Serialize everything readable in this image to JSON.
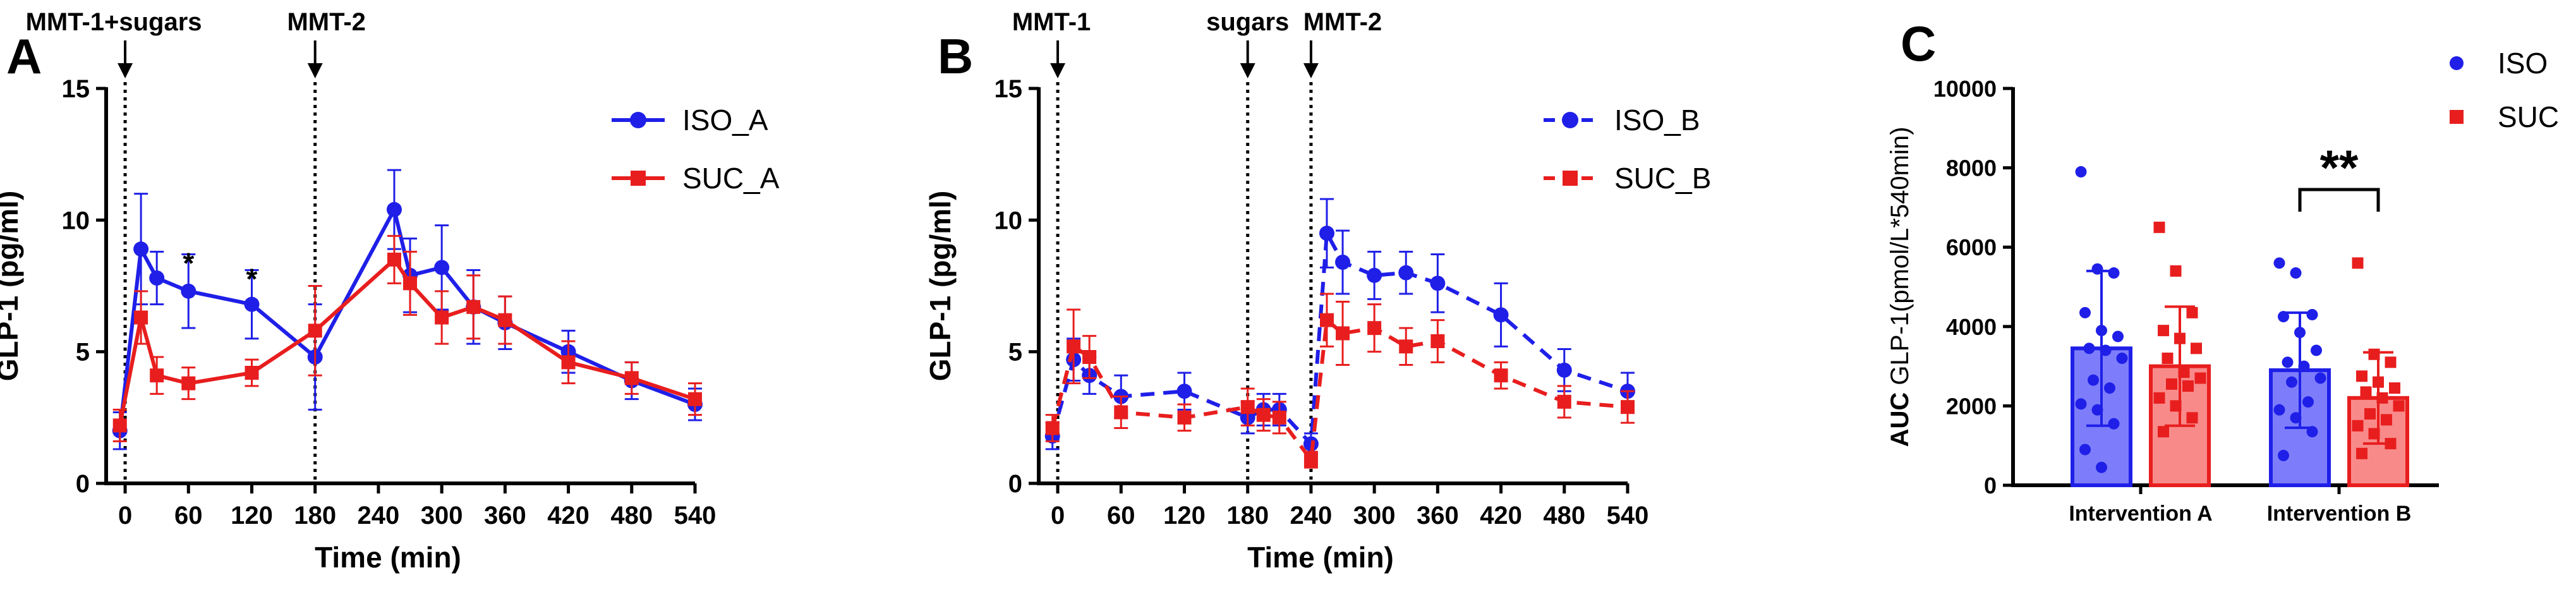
{
  "chart_data": [
    {
      "panel_label": "A",
      "type": "line",
      "xlabel": "Time (min)",
      "ylabel": "GLP-1 (pg/ml)",
      "xlim": [
        -18,
        540
      ],
      "ylim": [
        0,
        15
      ],
      "xticks": [
        0,
        60,
        120,
        180,
        240,
        300,
        360,
        420,
        480,
        540
      ],
      "yticks": [
        0,
        5,
        10,
        15
      ],
      "legend_position": "top-right",
      "event_markers": [
        {
          "x": 0,
          "label": "MMT-1+sugars"
        },
        {
          "x": 180,
          "label": "MMT-2"
        }
      ],
      "series": [
        {
          "name": "ISO_A",
          "color": "#1f1fe8",
          "marker": "circle",
          "line": "solid",
          "x": [
            -5,
            15,
            30,
            60,
            120,
            180,
            255,
            270,
            300,
            330,
            360,
            420,
            480,
            540
          ],
          "values": [
            2.0,
            8.9,
            7.8,
            7.3,
            6.8,
            4.8,
            10.4,
            7.9,
            8.2,
            6.7,
            6.1,
            5.0,
            3.9,
            3.0
          ],
          "errors": [
            0.7,
            2.1,
            1.0,
            1.4,
            1.3,
            2.0,
            1.5,
            1.4,
            1.6,
            1.4,
            1.0,
            0.8,
            0.7,
            0.6
          ]
        },
        {
          "name": "SUC_A",
          "color": "#e81e1e",
          "marker": "square",
          "line": "solid",
          "x": [
            -5,
            15,
            30,
            60,
            120,
            180,
            255,
            270,
            300,
            330,
            360,
            420,
            480,
            540
          ],
          "values": [
            2.2,
            6.3,
            4.1,
            3.8,
            4.2,
            5.8,
            8.5,
            7.6,
            6.3,
            6.7,
            6.2,
            4.6,
            4.0,
            3.2
          ],
          "errors": [
            0.6,
            1.0,
            0.7,
            0.6,
            0.5,
            1.7,
            0.9,
            1.2,
            1.0,
            1.2,
            0.9,
            0.8,
            0.6,
            0.6
          ]
        }
      ],
      "annotations": [
        {
          "x": 60,
          "y": 8.7,
          "text": "*"
        },
        {
          "x": 120,
          "y": 8.1,
          "text": "*"
        }
      ]
    },
    {
      "panel_label": "B",
      "type": "line",
      "xlabel": "Time (min)",
      "ylabel": "GLP-1 (pg/ml)",
      "xlim": [
        -18,
        540
      ],
      "ylim": [
        0,
        15
      ],
      "xticks": [
        0,
        60,
        120,
        180,
        240,
        300,
        360,
        420,
        480,
        540
      ],
      "yticks": [
        0,
        5,
        10,
        15
      ],
      "legend_position": "top-right",
      "event_markers": [
        {
          "x": 0,
          "label": "MMT-1"
        },
        {
          "x": 180,
          "label": "sugars"
        },
        {
          "x": 240,
          "label": "MMT-2"
        }
      ],
      "series": [
        {
          "name": "ISO_B",
          "color": "#1f1fe8",
          "marker": "circle",
          "line": "dashed",
          "x": [
            -5,
            15,
            30,
            60,
            120,
            180,
            195,
            210,
            240,
            255,
            270,
            300,
            330,
            360,
            420,
            480,
            540
          ],
          "values": [
            1.8,
            4.7,
            4.1,
            3.3,
            3.5,
            2.5,
            2.8,
            2.8,
            1.5,
            9.5,
            8.4,
            7.9,
            8.0,
            7.6,
            6.4,
            4.3,
            3.5
          ],
          "errors": [
            0.5,
            0.8,
            0.7,
            0.8,
            0.7,
            0.6,
            0.6,
            0.6,
            0.4,
            1.3,
            1.2,
            0.9,
            0.8,
            1.1,
            1.2,
            0.8,
            0.7
          ]
        },
        {
          "name": "SUC_B",
          "color": "#e81e1e",
          "marker": "square",
          "line": "dashed",
          "x": [
            -5,
            15,
            30,
            60,
            120,
            180,
            195,
            210,
            240,
            255,
            270,
            300,
            330,
            360,
            420,
            480,
            540
          ],
          "values": [
            2.1,
            5.2,
            4.8,
            2.7,
            2.5,
            2.9,
            2.6,
            2.5,
            0.9,
            6.2,
            5.7,
            5.9,
            5.2,
            5.4,
            4.1,
            3.1,
            2.9
          ],
          "errors": [
            0.5,
            1.4,
            0.8,
            0.6,
            0.5,
            0.7,
            0.6,
            0.6,
            0.3,
            1.0,
            1.2,
            0.9,
            0.7,
            0.8,
            0.5,
            0.6,
            0.6
          ]
        }
      ]
    },
    {
      "panel_label": "C",
      "type": "bar",
      "ylabel_bold": "AUC",
      "ylabel_rest": " GLP-1(pmol/L*540min)",
      "ylim": [
        0,
        10000
      ],
      "yticks": [
        0,
        2000,
        4000,
        6000,
        8000,
        10000
      ],
      "categories": [
        "Intervention A",
        "Intervention B"
      ],
      "legend_position": "top-right",
      "series": [
        {
          "name": "ISO",
          "color": "#1f1fe8",
          "fill": "#7d7dfb",
          "marker": "circle",
          "values": [
            3450,
            2900
          ],
          "errors": [
            1950,
            1450
          ],
          "points": [
            [
              7900,
              5450,
              5350,
              4350,
              3900,
              3750,
              3450,
              3400,
              3200,
              2650,
              2450,
              2050,
              1900,
              1550,
              900,
              450
            ],
            [
              5600,
              5350,
              4300,
              4250,
              3850,
              3400,
              3100,
              3000,
              2700,
              2600,
              2100,
              1900,
              1700,
              1350,
              750
            ]
          ]
        },
        {
          "name": "SUC",
          "color": "#e81e1e",
          "fill": "#f98a8a",
          "marker": "square",
          "values": [
            3000,
            2200
          ],
          "errors": [
            1500,
            1150
          ],
          "points": [
            [
              6500,
              5400,
              4350,
              3900,
              3700,
              3450,
              3200,
              2850,
              2700,
              2550,
              2500,
              2200,
              2000,
              1700,
              1350
            ],
            [
              5600,
              3300,
              3100,
              2750,
              2600,
              2450,
              2350,
              2200,
              2000,
              1800,
              1650,
              1500,
              1300,
              1050,
              800
            ]
          ]
        }
      ],
      "significance": [
        {
          "category": "Intervention B",
          "text": "**"
        }
      ]
    }
  ]
}
